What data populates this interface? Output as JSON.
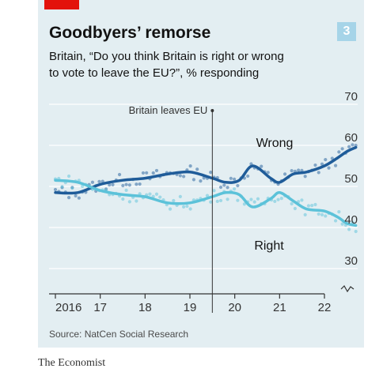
{
  "header": {
    "title": "Goodbyers’ remorse",
    "subtitle_line1": "Britain, “Do you think Britain is right or wrong",
    "subtitle_line2": "to vote to leave the EU?”, % responding",
    "badge": "3"
  },
  "footer": {
    "source": "Source: NatCen Social Research",
    "brand": "The Economist"
  },
  "colors": {
    "card_background": "#e3eef2",
    "red_tag": "#e3120b",
    "badge": "#a6d4e8",
    "wrong_series": "#1f5c99",
    "right_series": "#5cc2d9",
    "grid": "#ffffff"
  },
  "chart_data": {
    "type": "line",
    "x_unit": "year",
    "x_ticks": [
      2016,
      2017,
      2018,
      2019,
      2020,
      2021,
      2022
    ],
    "x_tick_labels": [
      "2016",
      "17",
      "18",
      "19",
      "20",
      "21",
      "22"
    ],
    "xlim": [
      2015.9,
      2022.95
    ],
    "y_ticks": [
      30,
      40,
      50,
      60,
      70
    ],
    "y_tick_labels": [
      "30",
      "40",
      "50",
      "60",
      "70"
    ],
    "ylim": [
      27,
      70
    ],
    "y_axis_break": true,
    "annotation": {
      "x": 2019.5,
      "text": "Britain leaves EU"
    },
    "series": [
      {
        "name": "Wrong",
        "x": [
          2016.0,
          2016.5,
          2017.0,
          2017.5,
          2018.0,
          2018.5,
          2019.0,
          2019.5,
          2019.8,
          2020.1,
          2020.4,
          2020.8,
          2021.0,
          2021.3,
          2021.6,
          2022.0,
          2022.3,
          2022.5,
          2022.7
        ],
        "y": [
          48.5,
          48.5,
          50.5,
          51.5,
          52,
          53,
          53.5,
          52,
          51,
          51.5,
          55,
          52,
          51,
          53,
          53.5,
          55,
          57,
          58.5,
          59.5
        ]
      },
      {
        "name": "Right",
        "x": [
          2016.0,
          2016.5,
          2017.0,
          2017.5,
          2018.0,
          2018.5,
          2019.0,
          2019.5,
          2019.8,
          2020.1,
          2020.4,
          2020.8,
          2021.0,
          2021.3,
          2021.6,
          2022.0,
          2022.3,
          2022.5,
          2022.7
        ],
        "y": [
          51.5,
          51,
          49,
          48,
          47.5,
          46,
          46,
          47.5,
          48.5,
          48,
          45,
          47,
          48.5,
          46.5,
          44.5,
          44,
          42.5,
          41,
          40.5
        ]
      }
    ]
  }
}
